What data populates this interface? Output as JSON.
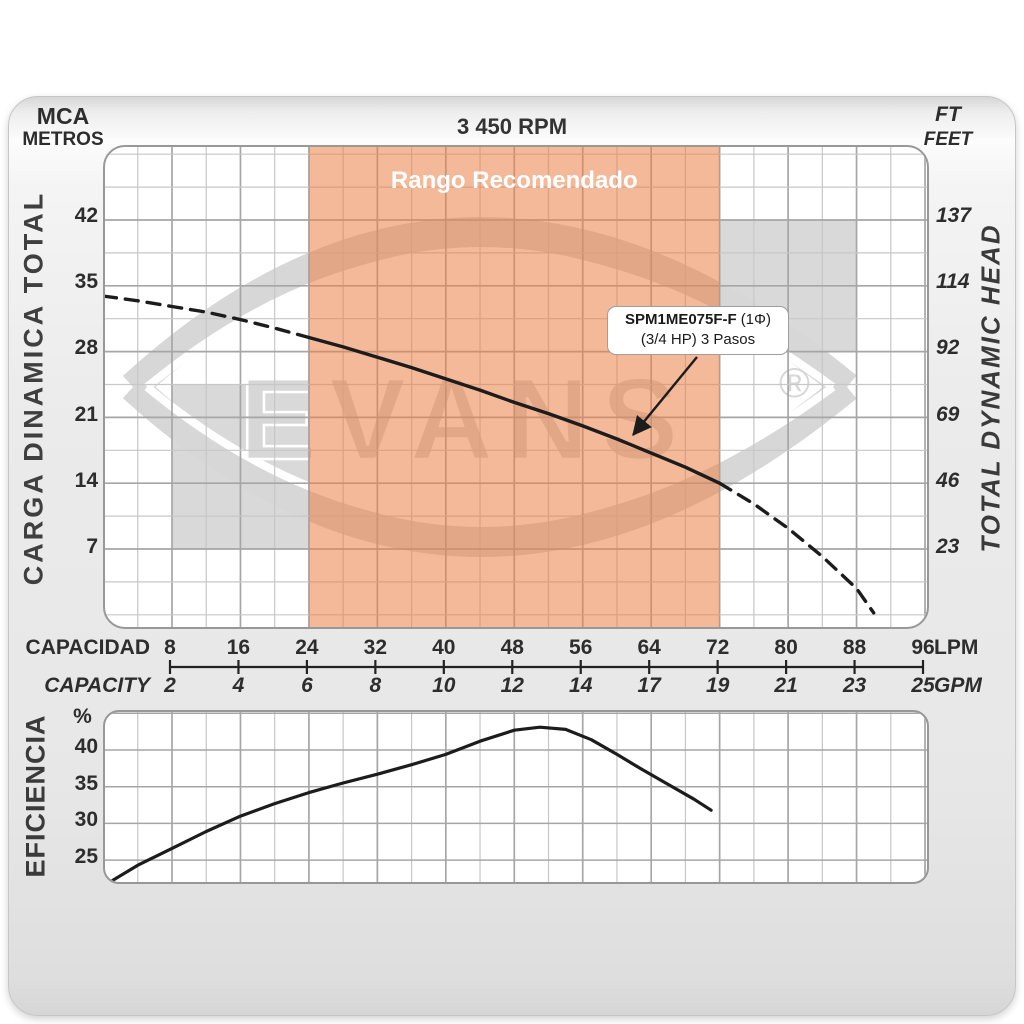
{
  "frame": {
    "title_rpm": "3 450 RPM"
  },
  "axes": {
    "left": {
      "unit_line1": "MCA",
      "unit_line2": "METROS",
      "title": "CARGA  DINAMICA  TOTAL",
      "ticks": [
        42,
        35,
        28,
        21,
        14,
        7
      ]
    },
    "right": {
      "unit_line1": "FT",
      "unit_line2": "FEET",
      "title": "TOTAL  DYNAMIC  HEAD",
      "ticks": [
        137,
        114,
        92,
        69,
        46,
        23
      ]
    },
    "bottom": {
      "label_top": "CAPACIDAD",
      "label_bottom": "CAPACITY",
      "unit_top": "LPM",
      "unit_bottom": "GPM"
    },
    "efficiency": {
      "title": "EFICIENCIA",
      "unit": "%"
    }
  },
  "annotations": {
    "recommended_range": "Rango Recomendado",
    "pump_model": "SPM1ME075F-F",
    "pump_phase": "(1Φ)",
    "pump_specs": "(3/4 HP)  3 Pasos",
    "watermark": "EVANS",
    "registered": "®"
  },
  "colors": {
    "recommended_band": "#e98046",
    "band_label": "#ffffff",
    "gray_zone": "#d9d9d9",
    "watermark": "#d7d7d7",
    "curve": "#1c1c1c",
    "grid_major": "#a6a6a6",
    "grid_minor": "#c7c7c7"
  },
  "chart_data": [
    {
      "type": "line",
      "title": "3 450 RPM",
      "name": "total_dynamic_head_curve",
      "xlabel": "CAPACIDAD / CAPACITY",
      "ylabel_left": "CARGA DINAMICA TOTAL (MCA METROS)",
      "ylabel_right": "TOTAL DYNAMIC HEAD (FT FEET)",
      "x_ticks_lpm": [
        8,
        16,
        24,
        32,
        40,
        48,
        56,
        64,
        72,
        80,
        88,
        96
      ],
      "x_ticks_gpm": [
        2,
        4,
        6,
        8,
        10,
        12,
        14,
        17,
        19,
        21,
        23,
        25
      ],
      "y_left_ticks": [
        42,
        35,
        28,
        21,
        14,
        7
      ],
      "y_right_ticks": [
        137,
        114,
        92,
        69,
        46,
        23
      ],
      "xlim_lpm": [
        0,
        96
      ],
      "ylim_mca": [
        0,
        49
      ],
      "grid": true,
      "recommended_range_lpm": [
        24,
        72
      ],
      "gray_zones": [
        {
          "x": [
            8,
            24
          ],
          "y": [
            7,
            24.5
          ]
        },
        {
          "x": [
            72,
            88
          ],
          "y": [
            28,
            42
          ]
        }
      ],
      "series": [
        {
          "name": "head-dashed-low-flow",
          "style": "dashed",
          "points": [
            [
              0,
              33.9
            ],
            [
              4,
              33.4
            ],
            [
              8,
              32.8
            ],
            [
              12,
              32.2
            ],
            [
              16,
              31.4
            ],
            [
              20,
              30.5
            ],
            [
              24,
              29.5
            ]
          ]
        },
        {
          "name": "head-solid-recommended",
          "style": "solid",
          "points": [
            [
              24,
              29.5
            ],
            [
              28,
              28.5
            ],
            [
              32,
              27.4
            ],
            [
              36,
              26.3
            ],
            [
              40,
              25.1
            ],
            [
              44,
              23.9
            ],
            [
              48,
              22.6
            ],
            [
              52,
              21.4
            ],
            [
              56,
              20.1
            ],
            [
              60,
              18.7
            ],
            [
              64,
              17.2
            ],
            [
              68,
              15.7
            ],
            [
              72,
              14
            ]
          ]
        },
        {
          "name": "head-dashed-high-flow",
          "style": "dashed",
          "points": [
            [
              72,
              14
            ],
            [
              76,
              11.8
            ],
            [
              80,
              9.2
            ],
            [
              84,
              6.2
            ],
            [
              88,
              2.8
            ],
            [
              90,
              0.2
            ]
          ]
        }
      ]
    },
    {
      "type": "line",
      "name": "efficiency_curve",
      "ylabel": "EFICIENCIA",
      "y_unit": "%",
      "y_ticks": [
        40,
        35,
        30,
        25
      ],
      "xlim_lpm": [
        0,
        96
      ],
      "ylim_pct": [
        22,
        45
      ],
      "grid": true,
      "series": [
        {
          "name": "efficiency",
          "style": "solid",
          "points": [
            [
              1,
              22.2
            ],
            [
              4,
              24.3
            ],
            [
              8,
              26.6
            ],
            [
              12,
              28.9
            ],
            [
              16,
              31.0
            ],
            [
              20,
              32.7
            ],
            [
              24,
              34.2
            ],
            [
              28,
              35.5
            ],
            [
              32,
              36.7
            ],
            [
              36,
              38.0
            ],
            [
              40,
              39.4
            ],
            [
              44,
              41.2
            ],
            [
              48,
              42.7
            ],
            [
              51,
              43.1
            ],
            [
              54,
              42.8
            ],
            [
              57,
              41.4
            ],
            [
              60,
              39.4
            ],
            [
              63,
              37.3
            ],
            [
              66,
              35.3
            ],
            [
              69,
              33.3
            ],
            [
              71,
              31.8
            ]
          ]
        }
      ]
    }
  ]
}
